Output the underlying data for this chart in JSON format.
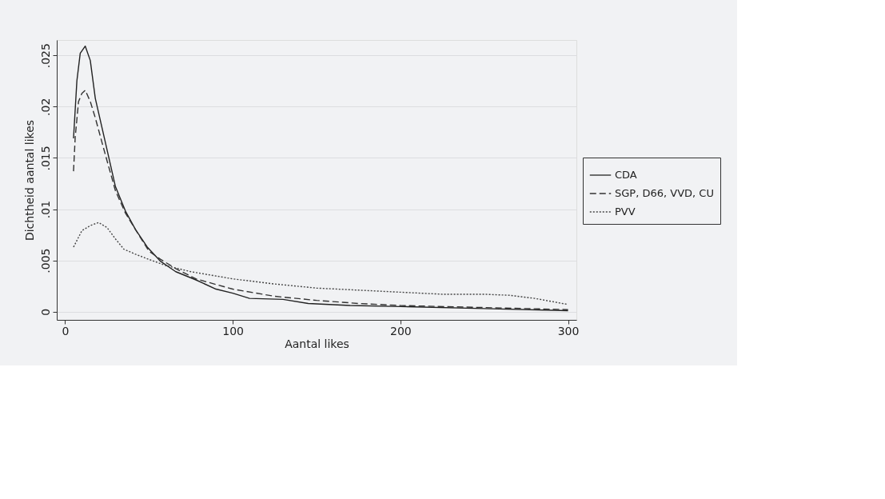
{
  "chart_data": {
    "type": "line",
    "xlabel": "Aantal likes",
    "ylabel": "Dichtheid aantal likes",
    "xlim": [
      -5,
      305
    ],
    "xticks": [
      0,
      100,
      200,
      300
    ],
    "ylim": [
      -0.0008,
      0.0265
    ],
    "yticks": [
      0,
      {
        "value": 0.005,
        "label": ".005"
      },
      {
        "value": 0.01,
        "label": ".01"
      },
      {
        "value": 0.015,
        "label": ".015"
      },
      {
        "value": 0.02,
        "label": ".02"
      },
      {
        "value": 0.025,
        "label": ".025"
      }
    ],
    "grid": "y",
    "legend": "right",
    "marker": "none",
    "series": [
      {
        "name": "CDA",
        "color": "#222222",
        "line_style": "solid",
        "x": [
          5,
          7,
          9,
          12,
          15,
          18,
          24,
          30,
          36,
          42,
          49,
          57,
          66,
          78,
          90,
          100,
          110,
          130,
          145,
          170,
          200,
          250,
          300
        ],
        "values": [
          0.0169,
          0.0225,
          0.0252,
          0.0259,
          0.0245,
          0.0208,
          0.0165,
          0.0122,
          0.0098,
          0.008,
          0.0063,
          0.0049,
          0.0039,
          0.0031,
          0.0022,
          0.0018,
          0.0013,
          0.0012,
          0.0008,
          0.0006,
          0.0005,
          0.0003,
          0.0001
        ]
      },
      {
        "name": "SGP, D66, VVD, CU",
        "color": "#333333",
        "line_style": "dashed",
        "x": [
          5,
          6,
          8,
          10,
          12,
          15,
          18,
          24,
          30,
          36,
          42,
          50,
          57,
          66,
          78,
          100,
          125,
          150,
          175,
          200,
          250,
          300
        ],
        "values": [
          0.0137,
          0.017,
          0.0205,
          0.0213,
          0.0216,
          0.0205,
          0.0189,
          0.0153,
          0.0118,
          0.0096,
          0.008,
          0.0059,
          0.0051,
          0.0042,
          0.0032,
          0.0022,
          0.0015,
          0.0011,
          0.0008,
          0.0006,
          0.0004,
          0.0002
        ]
      },
      {
        "name": "PVV",
        "color": "#444444",
        "line_style": "dotted",
        "x": [
          5,
          10,
          15,
          20,
          25,
          30,
          35,
          42,
          50,
          60,
          75,
          100,
          125,
          150,
          175,
          200,
          225,
          250,
          265,
          280,
          300
        ],
        "values": [
          0.0063,
          0.0079,
          0.0084,
          0.0087,
          0.0082,
          0.0071,
          0.0061,
          0.0056,
          0.0051,
          0.0045,
          0.0039,
          0.0032,
          0.0027,
          0.0023,
          0.0021,
          0.0019,
          0.0017,
          0.0017,
          0.0016,
          0.0013,
          0.0007
        ]
      }
    ]
  }
}
